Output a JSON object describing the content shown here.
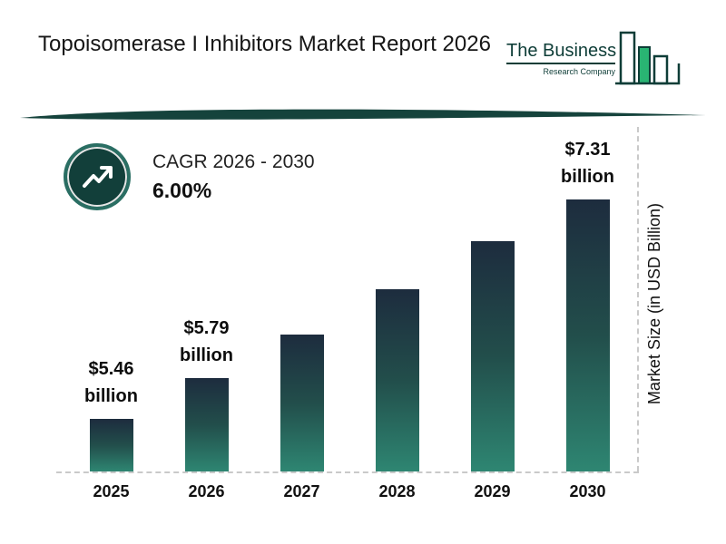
{
  "header": {
    "title": "Topoisomerase I Inhibitors Market Report 2026",
    "logo": {
      "line1": "The Business",
      "line2": "Research Company"
    }
  },
  "cagr": {
    "label": "CAGR 2026 - 2030",
    "value": "6.00%"
  },
  "chart_data": {
    "type": "bar",
    "categories": [
      "2025",
      "2026",
      "2027",
      "2028",
      "2029",
      "2030"
    ],
    "values": [
      5.46,
      5.79,
      6.14,
      6.51,
      6.9,
      7.31
    ],
    "bar_labels": [
      {
        "amount": "$5.46",
        "unit": "billion"
      },
      {
        "amount": "$5.79",
        "unit": "billion"
      },
      null,
      null,
      null,
      {
        "amount": "$7.31",
        "unit": "billion"
      }
    ],
    "title": "Topoisomerase I Inhibitors Market Report 2026",
    "xlabel": "",
    "ylabel": "Market Size (in USD Billion)",
    "ylim": [
      5.0,
      7.5
    ],
    "legend": "none",
    "grid": "off",
    "colors": {
      "bar_top": "#1d2c3e",
      "bar_bottom": "#2e8672",
      "accent_teal": "#123f3a",
      "logo_green": "#29b473"
    }
  }
}
